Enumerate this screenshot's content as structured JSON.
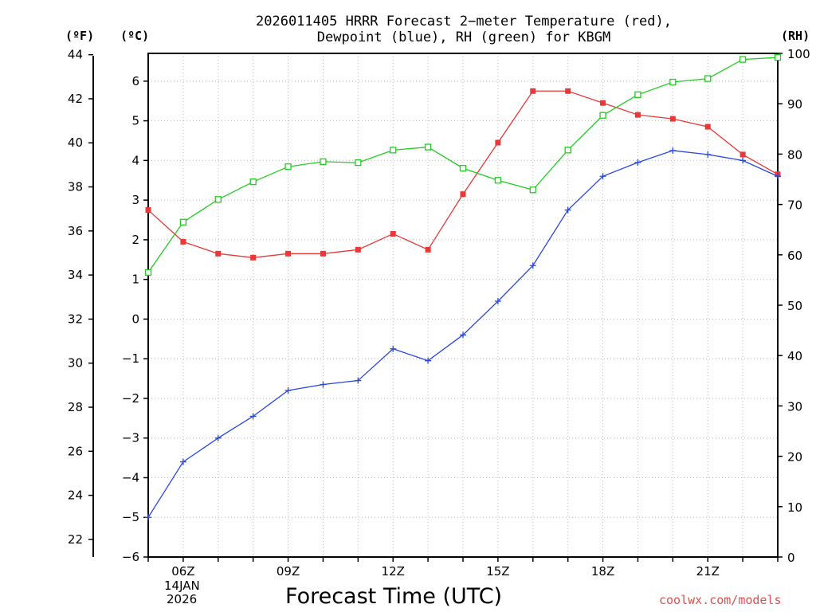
{
  "title_line1": "2026011405 HRRR Forecast 2−meter Temperature (red),",
  "title_line2": "Dewpoint (blue), RH (green) for KBGM",
  "unit_f": "(ºF)",
  "unit_c": "(ºC)",
  "unit_rh": "(RH)",
  "date_line1": "14JAN",
  "date_line2": "2026",
  "credit": "coolwx.com/models",
  "chart_data": {
    "type": "line",
    "title": "2026011405 HRRR Forecast 2-meter Temperature (red), Dewpoint (blue), RH (green) for KBGM",
    "xlabel": "Forecast Time (UTC)",
    "x_hours": [
      5,
      6,
      7,
      8,
      9,
      10,
      11,
      12,
      13,
      14,
      15,
      16,
      17,
      18,
      19,
      20,
      21,
      22,
      23
    ],
    "x_tick_hours": [
      6,
      9,
      12,
      15,
      18,
      21
    ],
    "x_tick_labels": [
      "06Z",
      "09Z",
      "12Z",
      "15Z",
      "18Z",
      "21Z"
    ],
    "x_range": [
      5,
      23
    ],
    "ylim_c": [
      -6,
      6.7
    ],
    "y_ticks_c": [
      -6,
      -5,
      -4,
      -3,
      -2,
      -1,
      0,
      1,
      2,
      3,
      4,
      5,
      6
    ],
    "y_tick_labels_c": [
      "−6",
      "−5",
      "−4",
      "−3",
      "−2",
      "−1",
      "0",
      "1",
      "2",
      "3",
      "4",
      "5",
      "6"
    ],
    "y_ticks_f": [
      22,
      24,
      26,
      28,
      30,
      32,
      34,
      36,
      38,
      40,
      42,
      44
    ],
    "ylim_rh": [
      0,
      100
    ],
    "y_ticks_rh": [
      0,
      10,
      20,
      30,
      40,
      50,
      60,
      70,
      80,
      90,
      100
    ],
    "series": [
      {
        "name": "Temperature",
        "color": "#e83838",
        "marker": "filled-square",
        "values": [
          2.75,
          1.95,
          1.65,
          1.55,
          1.65,
          1.65,
          1.75,
          2.15,
          1.75,
          3.15,
          4.45,
          5.75,
          5.75,
          5.45,
          5.15,
          5.05,
          4.85,
          4.15,
          3.65
        ]
      },
      {
        "name": "Dewpoint",
        "color": "#2848e0",
        "marker": "plus",
        "values": [
          -5.0,
          -3.6,
          -3.0,
          -2.45,
          -1.8,
          -1.65,
          -1.55,
          -0.75,
          -1.05,
          -0.4,
          0.45,
          1.35,
          2.75,
          3.6,
          3.95,
          4.25,
          4.15,
          4.0,
          3.6
        ]
      },
      {
        "name": "RH",
        "color": "#22cc22",
        "marker": "open-square",
        "axis": "rh",
        "values": [
          56.5,
          66.5,
          71,
          74.5,
          77.5,
          78.5,
          78.3,
          80.8,
          81.4,
          77.2,
          74.8,
          72.9,
          80.8,
          87.7,
          91.8,
          94.3,
          95,
          98.8,
          99.2
        ]
      }
    ]
  }
}
